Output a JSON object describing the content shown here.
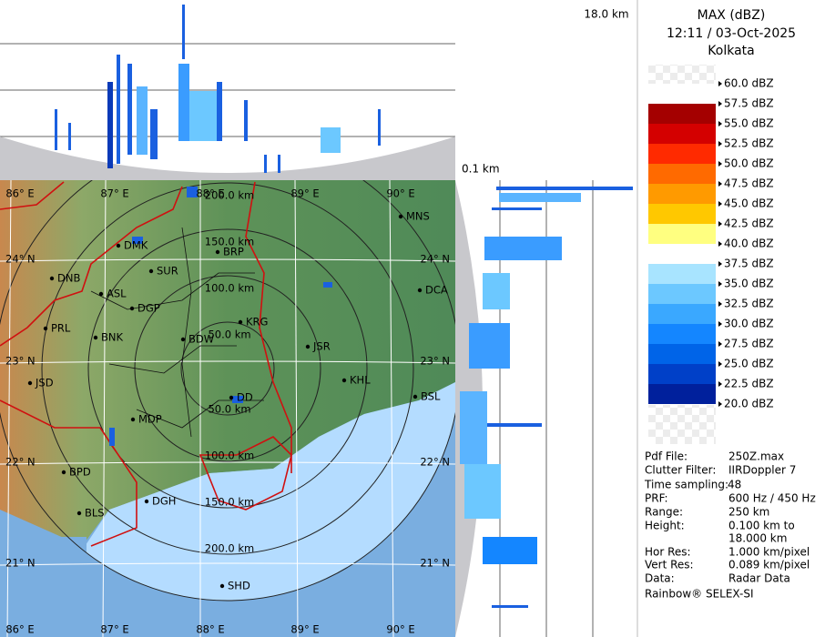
{
  "header": {
    "product": "MAX (dBZ)",
    "datetime": "12:11 / 03-Oct-2025",
    "station": "Kolkata"
  },
  "height_labels": {
    "top": "18.0 km",
    "bottom": "0.1 km"
  },
  "legend": {
    "labels": [
      "60.0 dBZ",
      "57.5 dBZ",
      "55.0 dBZ",
      "52.5 dBZ",
      "50.0 dBZ",
      "47.5 dBZ",
      "45.0 dBZ",
      "42.5 dBZ",
      "40.0 dBZ",
      "37.5 dBZ",
      "35.0 dBZ",
      "32.5 dBZ",
      "30.0 dBZ",
      "27.5 dBZ",
      "25.0 dBZ",
      "22.5 dBZ",
      "20.0 dBZ"
    ],
    "colors": [
      "#ffffff",
      "#a40000",
      "#d40000",
      "#ff2a00",
      "#ff6a00",
      "#ff9a00",
      "#ffc800",
      "#ffff80",
      "#ffffff",
      "#a8e4ff",
      "#6cc8ff",
      "#3aa8ff",
      "#1486ff",
      "#0064e8",
      "#0040c8",
      "#00209c"
    ]
  },
  "info": {
    "rows": [
      {
        "label": "Pdf File:",
        "value": "250Z.max"
      },
      {
        "label": "Clutter Filter:",
        "value": "IIRDoppler 7"
      },
      {
        "label": "Time sampling:",
        "value": "48"
      },
      {
        "label": "PRF:",
        "value": "600 Hz / 450 Hz"
      },
      {
        "label": "Range:",
        "value": "250 km"
      },
      {
        "label": "Height:",
        "value": "0.100 km to"
      },
      {
        "value": "18.000 km"
      },
      {
        "label": "Hor Res:",
        "value": "1.000 km/pixel"
      },
      {
        "label": "Vert Res:",
        "value": "0.089 km/pixel"
      },
      {
        "label": "Data:",
        "value": "Radar Data"
      }
    ],
    "footer": "Rainbow® SELEX-SI"
  },
  "map": {
    "lon_labels": [
      "86° E",
      "87° E",
      "88° E",
      "89° E",
      "90° E"
    ],
    "lat_labels": [
      "24° N",
      "23° N",
      "22° N",
      "21° N"
    ],
    "range_labels": [
      "50.0 km",
      "100.0 km",
      "150.0 km",
      "200.0 km"
    ],
    "cities": [
      "MNS",
      "DMK",
      "BRP",
      "SUR",
      "DNB",
      "ASL",
      "DGP",
      "KRG",
      "DCA",
      "BNK",
      "BDW",
      "PRL",
      "JSR",
      "JSD",
      "KHL",
      "BSL",
      "DD",
      "MDP",
      "BPD",
      "DGH",
      "BLS",
      "SHD"
    ]
  }
}
